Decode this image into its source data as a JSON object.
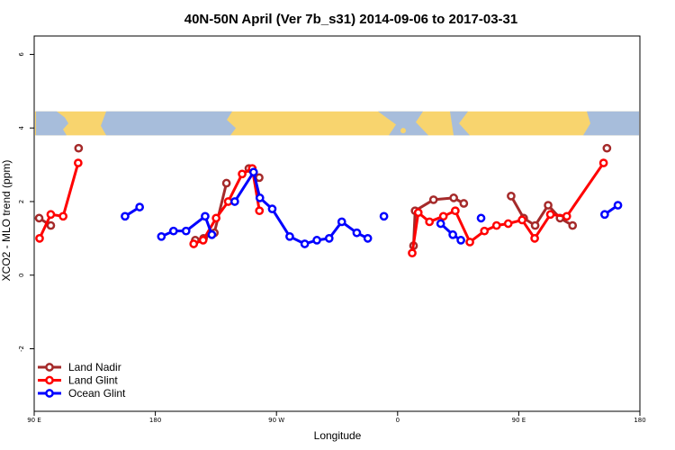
{
  "chart_data": {
    "type": "line",
    "title": "40N-50N April (Ver 7b_s31)   2014-09-06 to 2017-03-31",
    "xlabel": "Longitude",
    "ylabel": "XCO2 - MLO trend (ppm)",
    "xlim": [
      -90,
      180
    ],
    "ylim": [
      -3.7,
      6.5
    ],
    "x_ticks": [
      -90,
      -36,
      18,
      72,
      126,
      180
    ],
    "x_tick_labels": [
      "90 E",
      "180",
      "90 W",
      "0",
      "90 E",
      "180"
    ],
    "y_ticks": [
      -2,
      0,
      2,
      4,
      6
    ],
    "y_tick_labels": [
      "-2",
      "0",
      "2",
      "4",
      "6"
    ],
    "legend_position": "bottom-left",
    "map_strip": {
      "y_from": 3.8,
      "y_to": 4.45,
      "land_color": "#f8d46e",
      "ocean_color": "#a7bddb"
    },
    "series": [
      {
        "name": "Land Nadir",
        "color": "#a52a2a",
        "segments": [
          [
            [
              -87.8,
              1.55
            ],
            [
              -82.6,
              1.35
            ]
          ],
          [
            [
              -70.2,
              3.45
            ]
          ],
          [
            [
              -18.2,
              0.95
            ],
            [
              -14.5,
              1.0
            ],
            [
              -9.7,
              1.15
            ],
            [
              -4.3,
              2.5
            ]
          ],
          [
            [
              5.7,
              2.9
            ],
            [
              10.3,
              2.65
            ]
          ],
          [
            [
              79.1,
              0.8
            ],
            [
              79.8,
              1.75
            ],
            [
              88.0,
              2.05
            ],
            [
              97.0,
              2.1
            ],
            [
              101.5,
              1.95
            ]
          ],
          [
            [
              122.6,
              2.15
            ],
            [
              128.2,
              1.55
            ],
            [
              133.3,
              1.35
            ],
            [
              139.1,
              1.9
            ],
            [
              144.4,
              1.55
            ],
            [
              150.0,
              1.35
            ]
          ],
          [
            [
              165.3,
              3.45
            ]
          ]
        ]
      },
      {
        "name": "Land Glint",
        "color": "#ff0000",
        "segments": [
          [
            [
              -87.6,
              1.0
            ],
            [
              -82.6,
              1.65
            ],
            [
              -77.1,
              1.6
            ],
            [
              -70.4,
              3.05
            ]
          ],
          [
            [
              -18.9,
              0.85
            ],
            [
              -14.7,
              0.95
            ],
            [
              -8.9,
              1.55
            ],
            [
              -3.5,
              2.0
            ],
            [
              2.7,
              2.75
            ],
            [
              7.2,
              2.9
            ],
            [
              10.4,
              1.75
            ]
          ],
          [
            [
              78.5,
              0.6
            ],
            [
              81.2,
              1.7
            ],
            [
              86.2,
              1.45
            ],
            [
              92.4,
              1.6
            ],
            [
              97.7,
              1.75
            ],
            [
              104.2,
              0.9
            ],
            [
              110.7,
              1.2
            ],
            [
              116.1,
              1.35
            ],
            [
              121.3,
              1.4
            ],
            [
              127.5,
              1.5
            ],
            [
              133.1,
              1.0
            ],
            [
              140.1,
              1.65
            ],
            [
              147.4,
              1.6
            ],
            [
              163.8,
              3.05
            ]
          ]
        ]
      },
      {
        "name": "Ocean Glint",
        "color": "#0000ff",
        "segments": [
          [
            [
              -49.5,
              1.6
            ],
            [
              -43.0,
              1.85
            ]
          ],
          [
            [
              -33.3,
              1.05
            ],
            [
              -27.9,
              1.2
            ],
            [
              -22.3,
              1.2
            ],
            [
              -13.8,
              1.6
            ],
            [
              -10.8,
              1.1
            ]
          ],
          [
            [
              -0.6,
              2.0
            ],
            [
              7.8,
              2.8
            ],
            [
              10.6,
              2.1
            ],
            [
              16.1,
              1.8
            ],
            [
              23.9,
              1.05
            ],
            [
              30.6,
              0.85
            ],
            [
              36.0,
              0.95
            ],
            [
              41.5,
              1.0
            ],
            [
              47.1,
              1.45
            ],
            [
              53.8,
              1.15
            ],
            [
              58.7,
              1.0
            ]
          ],
          [
            [
              65.9,
              1.6
            ]
          ],
          [
            [
              91.2,
              1.4
            ],
            [
              96.6,
              1.1
            ],
            [
              100.2,
              0.95
            ]
          ],
          [
            [
              109.2,
              1.55
            ]
          ],
          [
            [
              164.3,
              1.65
            ],
            [
              170.2,
              1.9
            ]
          ]
        ]
      }
    ]
  }
}
